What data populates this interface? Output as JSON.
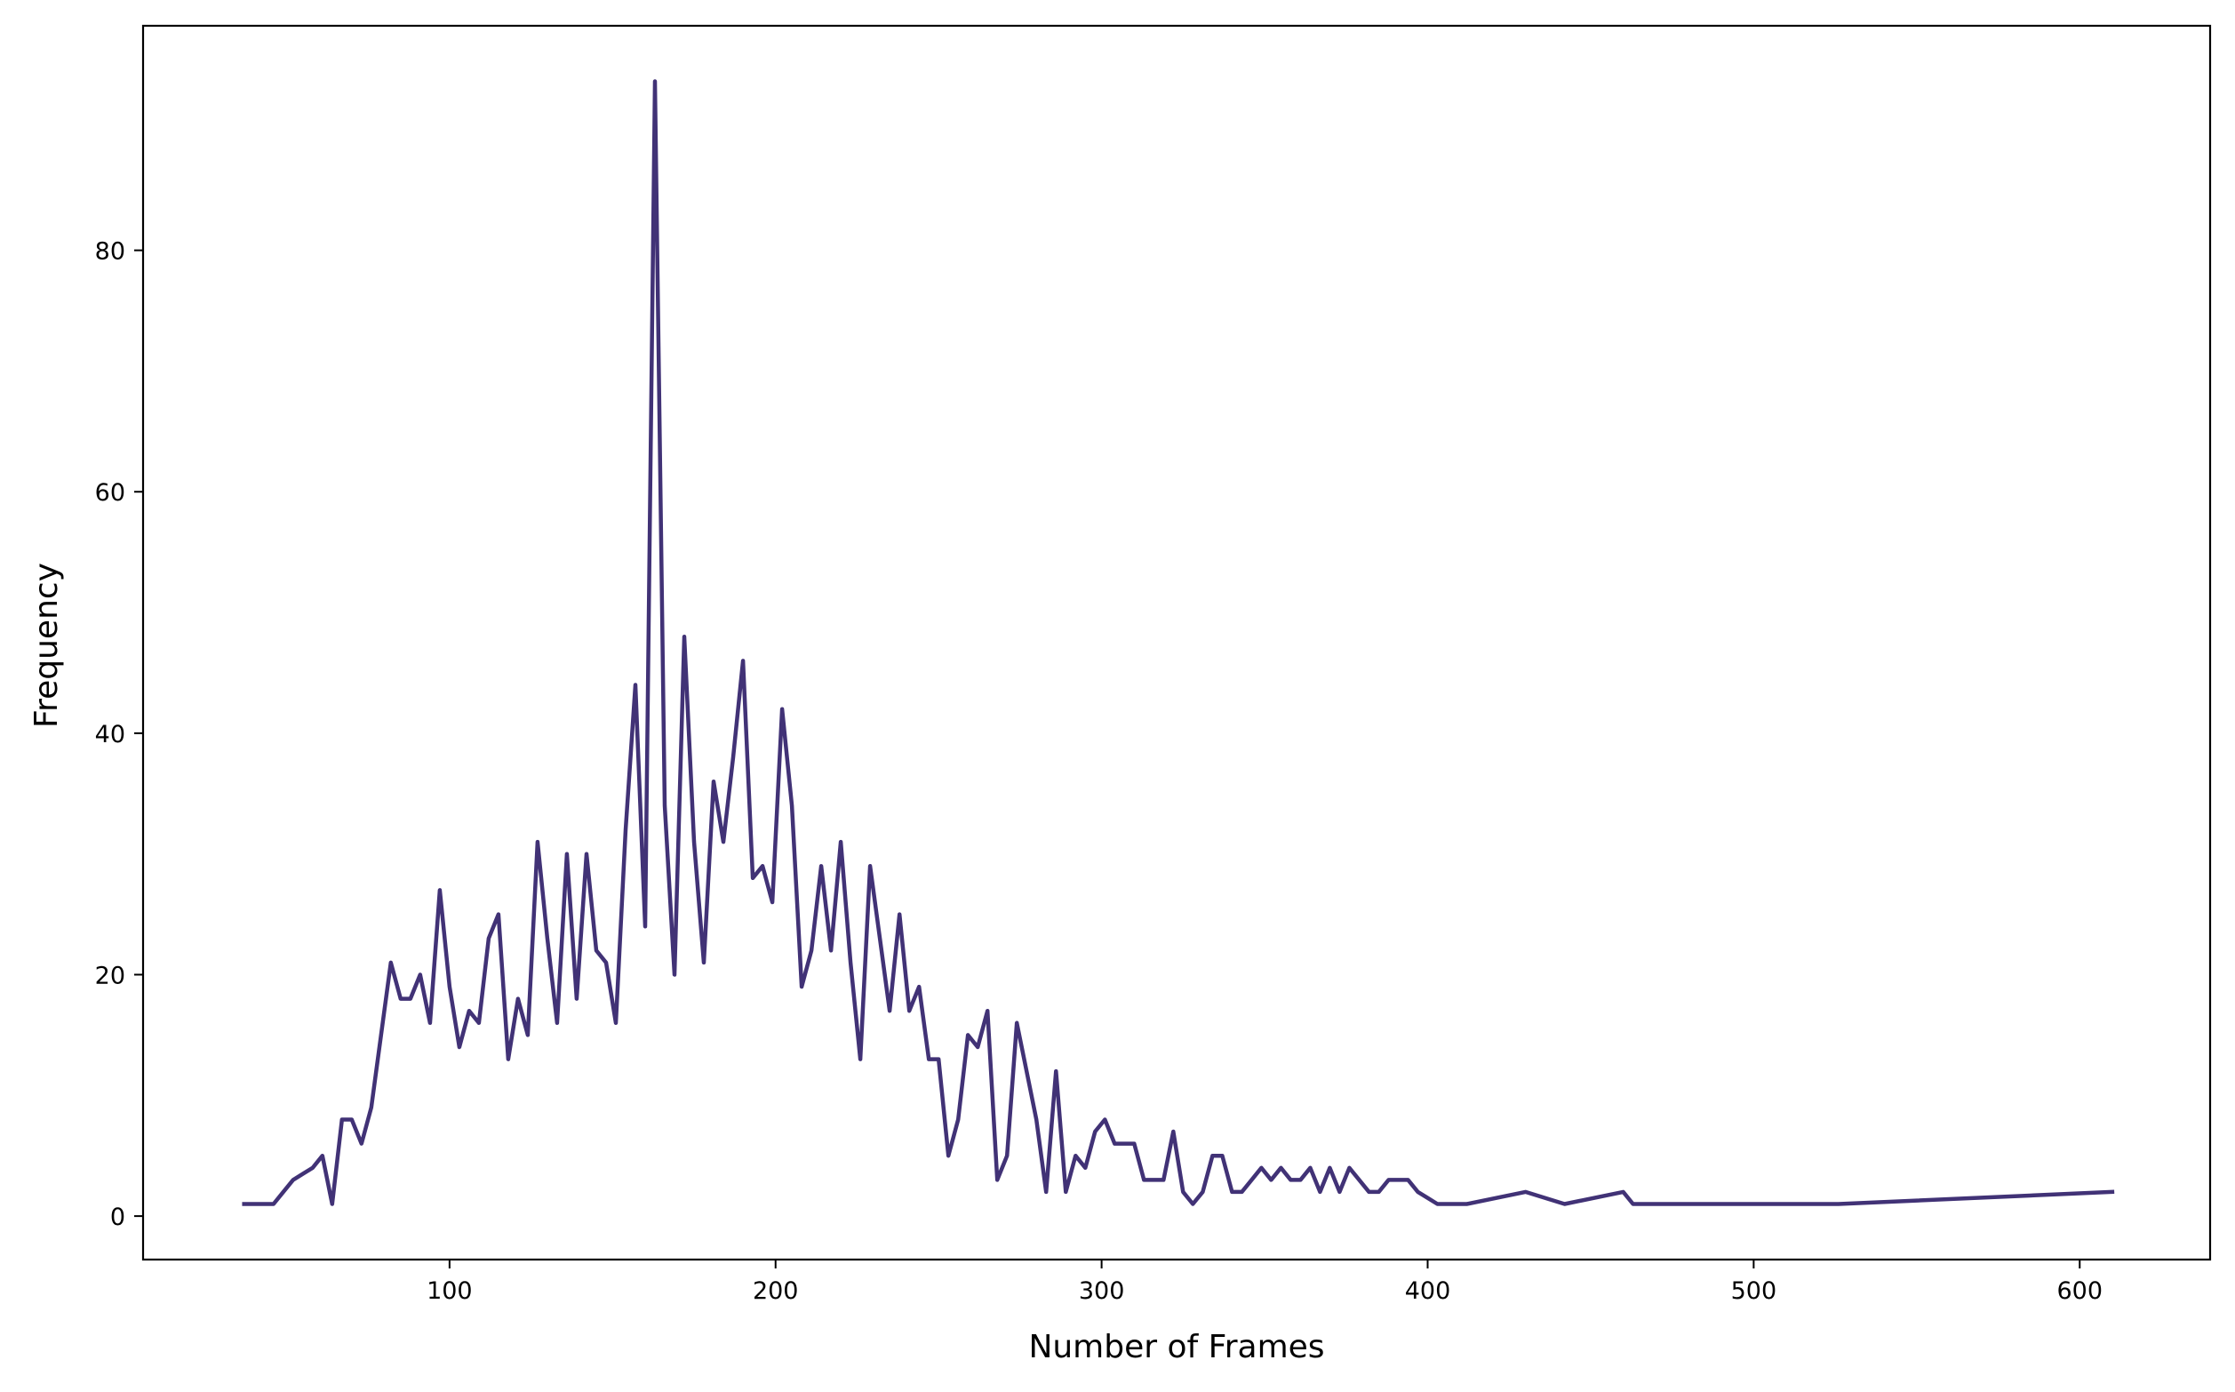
{
  "chart_data": {
    "type": "line",
    "title": "",
    "xlabel": "Number of Frames",
    "ylabel": "Frequency",
    "xlim": [
      6,
      640
    ],
    "ylim": [
      -3.6,
      98.6
    ],
    "xticks": [
      100,
      200,
      300,
      400,
      500,
      600
    ],
    "yticks": [
      0,
      20,
      40,
      60,
      80
    ],
    "grid": false,
    "line_color": "#413276",
    "series": [
      {
        "x": [
          37,
          40,
          43,
          46,
          49,
          52,
          55,
          58,
          61,
          64,
          67,
          70,
          73,
          76,
          79,
          82,
          85,
          88,
          91,
          94,
          97,
          100,
          103,
          106,
          109,
          112,
          115,
          118,
          121,
          124,
          127,
          130,
          133,
          136,
          139,
          142,
          145,
          148,
          151,
          154,
          157,
          160,
          163,
          166,
          169,
          172,
          175,
          178,
          181,
          184,
          187,
          190,
          193,
          196,
          199,
          202,
          205,
          208,
          211,
          214,
          217,
          220,
          223,
          226,
          229,
          232,
          235,
          238,
          241,
          244,
          247,
          250,
          253,
          256,
          259,
          262,
          265,
          268,
          271,
          274,
          277,
          280,
          283,
          286,
          289,
          292,
          295,
          298,
          301,
          304,
          307,
          310,
          313,
          316,
          319,
          322,
          325,
          328,
          331,
          334,
          337,
          340,
          343,
          346,
          349,
          352,
          355,
          358,
          361,
          364,
          367,
          370,
          373,
          376,
          379,
          382,
          385,
          388,
          391,
          394,
          397,
          400,
          403,
          406,
          409,
          412,
          430,
          442,
          460,
          463,
          526,
          610
        ],
        "y": [
          1,
          1,
          1,
          1,
          2,
          3,
          3.5,
          4,
          5,
          1,
          8,
          8,
          6,
          9,
          15,
          21,
          18,
          18,
          20,
          16,
          27,
          19,
          14,
          17,
          16,
          23,
          25,
          13,
          18,
          15,
          31,
          23,
          16,
          30,
          18,
          30,
          22,
          21,
          16,
          32,
          44,
          24,
          94,
          34,
          20,
          48,
          31,
          21,
          36,
          31,
          38,
          46,
          28,
          29,
          26,
          42,
          34,
          19,
          22,
          29,
          22,
          31,
          21,
          13,
          29,
          23,
          17,
          25,
          17,
          19,
          13,
          13,
          5,
          8,
          15,
          14,
          17,
          3,
          5,
          16,
          12,
          8,
          2,
          12,
          2,
          5,
          4,
          7,
          8,
          6,
          6,
          6,
          3,
          3,
          3,
          7,
          2,
          1,
          2,
          5,
          5,
          2,
          2,
          3,
          4,
          3,
          4,
          3,
          3,
          4,
          2,
          4,
          2,
          4,
          3,
          2,
          2,
          3,
          3,
          3,
          2,
          1.5,
          1,
          1,
          1,
          1,
          2,
          1,
          2,
          1,
          1,
          2
        ]
      }
    ]
  }
}
